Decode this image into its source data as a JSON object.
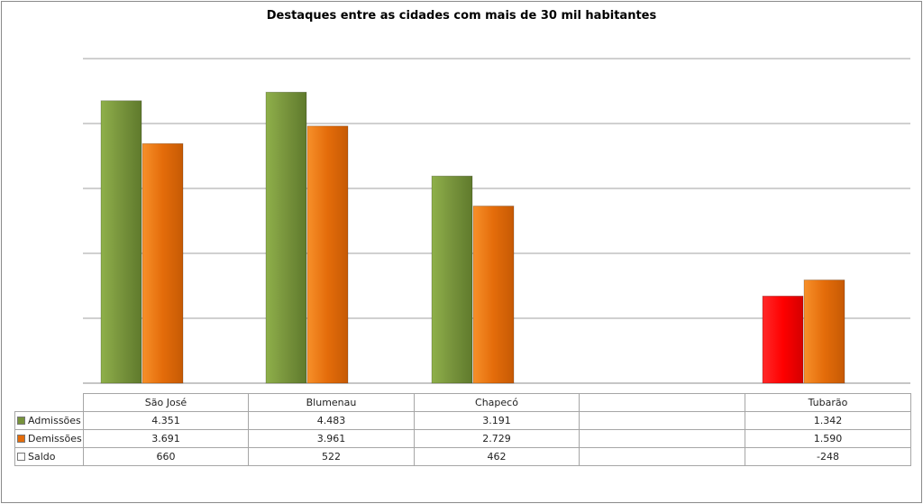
{
  "chart_data": {
    "type": "bar",
    "title": "Destaques entre as cidades com mais de 30 mil habitantes",
    "categories": [
      "São José",
      "Blumenau",
      "Chapecó",
      "",
      "Tubarão"
    ],
    "series": [
      {
        "name": "Admissões",
        "color": "#77933c",
        "values": [
          4.351,
          4.483,
          3.191,
          null,
          1.342
        ],
        "labels": [
          "4.351",
          "4.483",
          "3.191",
          "",
          "1.342"
        ]
      },
      {
        "name": "Demissões",
        "color": "#e46c0a",
        "values": [
          3.691,
          3.961,
          2.729,
          null,
          1.59
        ],
        "labels": [
          "3.691",
          "3.961",
          "2.729",
          "",
          "1.590"
        ]
      },
      {
        "name": "Saldo",
        "color": "#ffffff",
        "values": [
          0.66,
          0.522,
          0.462,
          null,
          -0.248
        ],
        "labels": [
          "660",
          "522",
          "462",
          "",
          "-248"
        ]
      }
    ],
    "highlight": {
      "category": "Tubarão",
      "series": "Admissões",
      "color": "#ff0000"
    },
    "ylim": [
      0,
      5
    ],
    "grid": true,
    "axis_labels_shown": false,
    "legend": "data-table"
  }
}
